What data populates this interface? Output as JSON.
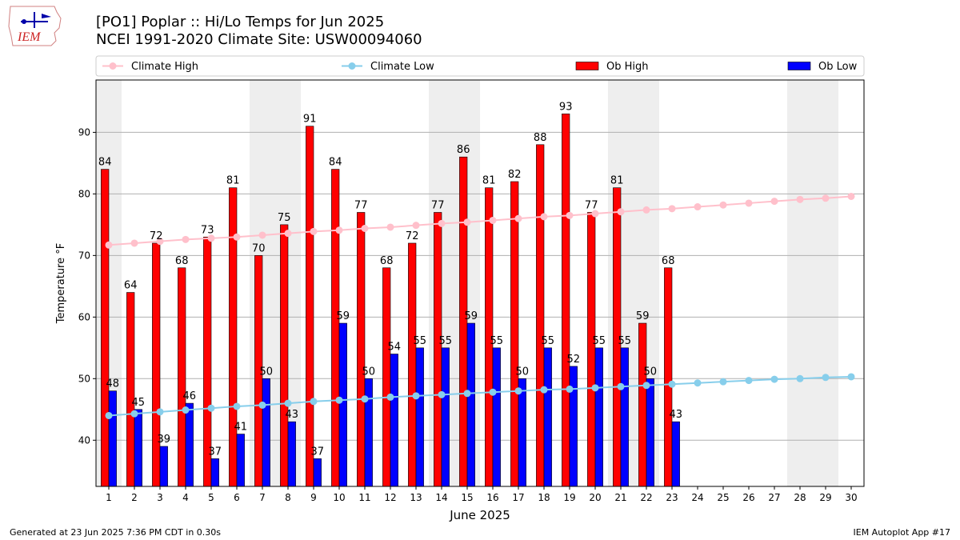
{
  "header": {
    "title_line1": "[PO1] Poplar :: Hi/Lo Temps for Jun 2025",
    "title_line2": "NCEI 1991-2020 Climate Site: USW00094060",
    "logo_text": "IEM"
  },
  "footer": {
    "generated": "Generated at 23 Jun 2025 7:36 PM CDT in 0.30s",
    "app": "IEM Autoplot App #17"
  },
  "colors": {
    "ob_high": "#ff0000",
    "ob_low": "#0000ff",
    "climate_high": "#ffc0cb",
    "climate_low": "#87ceeb",
    "weekend_shade": "#eeeeee",
    "grid": "#b0b0b0"
  },
  "chart_data": {
    "type": "bar",
    "xlabel": "June 2025",
    "ylabel": "Temperature °F",
    "ylim": [
      32.5,
      98.5
    ],
    "yticks": [
      40,
      50,
      60,
      70,
      80,
      90
    ],
    "xlim": [
      0.5,
      30.5
    ],
    "grid": "horizontal",
    "legend_position": "top",
    "shaded_weekend_days": [
      1,
      7,
      8,
      14,
      15,
      21,
      22,
      28,
      29
    ],
    "categories": [
      "1",
      "2",
      "3",
      "4",
      "5",
      "6",
      "7",
      "8",
      "9",
      "10",
      "11",
      "12",
      "13",
      "14",
      "15",
      "16",
      "17",
      "18",
      "19",
      "20",
      "21",
      "22",
      "23",
      "24",
      "25",
      "26",
      "27",
      "28",
      "29",
      "30"
    ],
    "series": [
      {
        "name": "Climate High",
        "kind": "line",
        "values": [
          71.7,
          72.0,
          72.3,
          72.6,
          72.8,
          73.0,
          73.3,
          73.6,
          73.9,
          74.1,
          74.4,
          74.6,
          74.9,
          75.2,
          75.4,
          75.7,
          76.0,
          76.3,
          76.5,
          76.8,
          77.1,
          77.4,
          77.6,
          77.9,
          78.2,
          78.5,
          78.8,
          79.1,
          79.3,
          79.6
        ]
      },
      {
        "name": "Climate Low",
        "kind": "line",
        "values": [
          44.0,
          44.3,
          44.6,
          44.9,
          45.2,
          45.5,
          45.7,
          46.0,
          46.3,
          46.5,
          46.7,
          47.0,
          47.2,
          47.4,
          47.6,
          47.8,
          48.0,
          48.2,
          48.3,
          48.5,
          48.7,
          48.9,
          49.1,
          49.3,
          49.5,
          49.7,
          49.9,
          50.0,
          50.2,
          50.3
        ]
      },
      {
        "name": "Ob High",
        "kind": "bar",
        "values": [
          84,
          64,
          72,
          68,
          73,
          81,
          70,
          75,
          91,
          84,
          77,
          68,
          72,
          77,
          86,
          81,
          82,
          88,
          93,
          77,
          81,
          59,
          68,
          null,
          null,
          null,
          null,
          null,
          null,
          null
        ]
      },
      {
        "name": "Ob Low",
        "kind": "bar",
        "values": [
          48,
          45,
          39,
          46,
          37,
          41,
          50,
          43,
          37,
          59,
          50,
          54,
          55,
          55,
          59,
          55,
          50,
          55,
          52,
          55,
          55,
          50,
          43,
          null,
          null,
          null,
          null,
          null,
          null,
          null
        ]
      }
    ]
  }
}
